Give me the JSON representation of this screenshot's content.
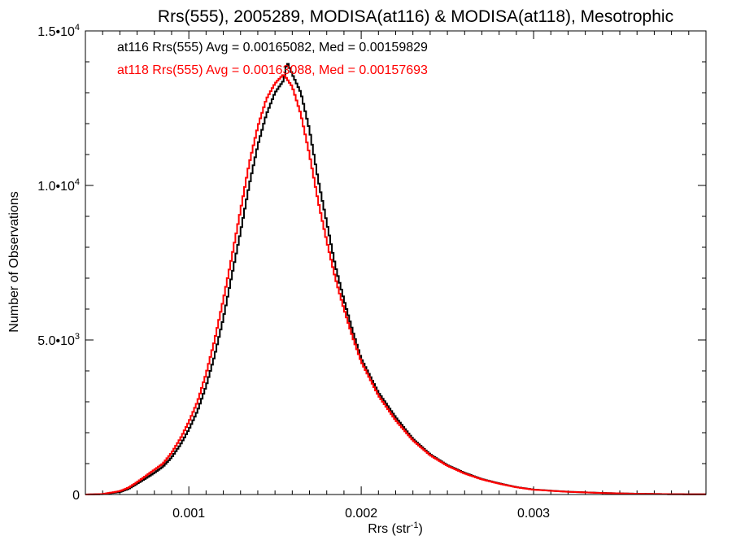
{
  "chart_data": {
    "type": "line",
    "title": "Rrs(555), 2005289, MODISA(at116) & MODISA(at118), Mesotrophic",
    "xlabel_main": "Rrs (str",
    "xlabel_sup": "-1",
    "xlabel_end": ")",
    "ylabel": "Number of Observations",
    "xlim": [
      0.0004,
      0.004
    ],
    "ylim": [
      0,
      15000
    ],
    "x_ticks": [
      {
        "value": 0.001,
        "label": "0.001"
      },
      {
        "value": 0.002,
        "label": "0.002"
      },
      {
        "value": 0.003,
        "label": "0.003"
      }
    ],
    "y_ticks": [
      {
        "value": 0,
        "base": "0",
        "exp": ""
      },
      {
        "value": 5000,
        "base": "5.0•10",
        "exp": "3"
      },
      {
        "value": 10000,
        "base": "1.0•10",
        "exp": "4"
      },
      {
        "value": 15000,
        "base": "1.5•10",
        "exp": "4"
      }
    ],
    "series": [
      {
        "name": "at116",
        "color": "#000000",
        "annotation": "at116 Rrs(555) Avg = 0.00165082, Med = 0.00159829",
        "points": [
          [
            0.0004,
            0
          ],
          [
            0.0005,
            10
          ],
          [
            0.0006,
            80
          ],
          [
            0.00065,
            180
          ],
          [
            0.0007,
            350
          ],
          [
            0.00075,
            520
          ],
          [
            0.0008,
            700
          ],
          [
            0.00085,
            900
          ],
          [
            0.0009,
            1200
          ],
          [
            0.00095,
            1600
          ],
          [
            0.001,
            2100
          ],
          [
            0.00105,
            2700
          ],
          [
            0.0011,
            3500
          ],
          [
            0.00115,
            4500
          ],
          [
            0.0012,
            5700
          ],
          [
            0.00125,
            7100
          ],
          [
            0.0013,
            8500
          ],
          [
            0.00135,
            10000
          ],
          [
            0.0014,
            11300
          ],
          [
            0.00145,
            12300
          ],
          [
            0.0015,
            13000
          ],
          [
            0.00155,
            13400
          ],
          [
            0.00157,
            14000
          ],
          [
            0.0016,
            13600
          ],
          [
            0.00165,
            13000
          ],
          [
            0.0017,
            11800
          ],
          [
            0.00175,
            10200
          ],
          [
            0.0018,
            8800
          ],
          [
            0.00185,
            7400
          ],
          [
            0.0019,
            6300
          ],
          [
            0.00195,
            5300
          ],
          [
            0.002,
            4400
          ],
          [
            0.0021,
            3300
          ],
          [
            0.0022,
            2500
          ],
          [
            0.0023,
            1800
          ],
          [
            0.0024,
            1300
          ],
          [
            0.0025,
            950
          ],
          [
            0.0026,
            700
          ],
          [
            0.0027,
            500
          ],
          [
            0.0028,
            360
          ],
          [
            0.0029,
            240
          ],
          [
            0.003,
            160
          ],
          [
            0.0032,
            90
          ],
          [
            0.0034,
            50
          ],
          [
            0.0036,
            25
          ],
          [
            0.0038,
            10
          ],
          [
            0.004,
            5
          ]
        ]
      },
      {
        "name": "at118",
        "color": "#ff0000",
        "annotation": "at118 Rrs(555) Avg = 0.00163088, Med = 0.00157693",
        "points": [
          [
            0.0004,
            0
          ],
          [
            0.0005,
            15
          ],
          [
            0.0006,
            110
          ],
          [
            0.00065,
            220
          ],
          [
            0.0007,
            400
          ],
          [
            0.00075,
            600
          ],
          [
            0.0008,
            800
          ],
          [
            0.00085,
            1000
          ],
          [
            0.0009,
            1350
          ],
          [
            0.00095,
            1800
          ],
          [
            0.001,
            2350
          ],
          [
            0.00105,
            3000
          ],
          [
            0.0011,
            3900
          ],
          [
            0.00115,
            5000
          ],
          [
            0.0012,
            6300
          ],
          [
            0.00125,
            7700
          ],
          [
            0.0013,
            9200
          ],
          [
            0.00135,
            10700
          ],
          [
            0.0014,
            11900
          ],
          [
            0.00145,
            12800
          ],
          [
            0.0015,
            13300
          ],
          [
            0.00155,
            13600
          ],
          [
            0.0016,
            13200
          ],
          [
            0.00165,
            12300
          ],
          [
            0.0017,
            11000
          ],
          [
            0.00175,
            9500
          ],
          [
            0.0018,
            8200
          ],
          [
            0.00185,
            7000
          ],
          [
            0.0019,
            6000
          ],
          [
            0.00195,
            5100
          ],
          [
            0.002,
            4300
          ],
          [
            0.0021,
            3200
          ],
          [
            0.0022,
            2400
          ],
          [
            0.0023,
            1750
          ],
          [
            0.0024,
            1270
          ],
          [
            0.0025,
            930
          ],
          [
            0.0026,
            680
          ],
          [
            0.0027,
            490
          ],
          [
            0.0028,
            350
          ],
          [
            0.0029,
            235
          ],
          [
            0.003,
            155
          ],
          [
            0.0032,
            88
          ],
          [
            0.0034,
            48
          ],
          [
            0.0036,
            24
          ],
          [
            0.0038,
            10
          ],
          [
            0.004,
            5
          ]
        ]
      }
    ]
  }
}
